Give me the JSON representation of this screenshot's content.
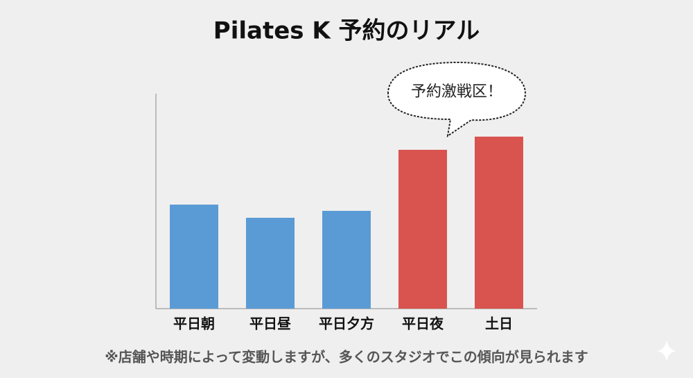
{
  "chart_data": {
    "type": "bar",
    "title": "Pilates K 予約のリアル",
    "categories": [
      "平日朝",
      "平日昼",
      "平日夕方",
      "平日夜",
      "土日"
    ],
    "values": [
      150,
      131,
      141,
      229,
      248
    ],
    "colors": [
      "#5b9bd5",
      "#5b9bd5",
      "#5b9bd5",
      "#d9534f",
      "#d9534f"
    ],
    "ylim": [
      0,
      310
    ],
    "annotation": "予約激戦区！",
    "note": "※店舗や時期によって変動しますが、多くのスタジオでこの傾向が見られます"
  }
}
